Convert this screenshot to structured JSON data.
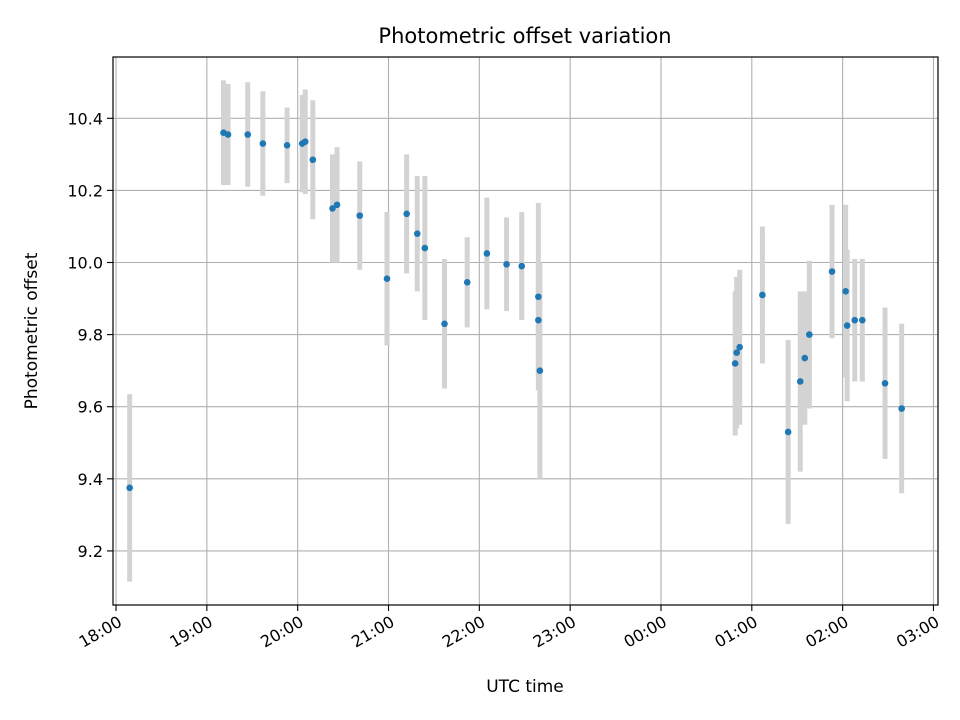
{
  "chart_data": {
    "type": "scatter",
    "title": "Photometric offset variation",
    "xlabel": "UTC time",
    "ylabel": "Photometric offset",
    "grid": true,
    "x_ticks": [
      "18:00",
      "19:00",
      "20:00",
      "21:00",
      "22:00",
      "23:00",
      "00:00",
      "01:00",
      "02:00",
      "03:00"
    ],
    "y_ticks": [
      "9.2",
      "9.4",
      "9.6",
      "9.8",
      "10.0",
      "10.2",
      "10.4"
    ],
    "xlim": [
      "17:58",
      "03:03"
    ],
    "ylim": [
      9.05,
      10.57
    ],
    "colors": {
      "point": "#1f77b4",
      "errorbar": "#d3d3d3",
      "grid": "#b0b0b0"
    },
    "points": [
      {
        "t": "18:09",
        "y": 9.375,
        "err": 0.26
      },
      {
        "t": "19:11",
        "y": 10.36,
        "err": 0.145
      },
      {
        "t": "19:14",
        "y": 10.355,
        "err": 0.14
      },
      {
        "t": "19:27",
        "y": 10.355,
        "err": 0.145
      },
      {
        "t": "19:37",
        "y": 10.33,
        "err": 0.145
      },
      {
        "t": "19:53",
        "y": 10.325,
        "err": 0.105
      },
      {
        "t": "20:03",
        "y": 10.33,
        "err": 0.135
      },
      {
        "t": "20:05",
        "y": 10.335,
        "err": 0.145
      },
      {
        "t": "20:10",
        "y": 10.285,
        "err": 0.165
      },
      {
        "t": "20:23",
        "y": 10.15,
        "err": 0.15
      },
      {
        "t": "20:26",
        "y": 10.16,
        "err": 0.16
      },
      {
        "t": "20:41",
        "y": 10.13,
        "err": 0.15
      },
      {
        "t": "20:59",
        "y": 9.955,
        "err": 0.185
      },
      {
        "t": "21:12",
        "y": 10.135,
        "err": 0.165
      },
      {
        "t": "21:19",
        "y": 10.08,
        "err": 0.16
      },
      {
        "t": "21:24",
        "y": 10.04,
        "err": 0.2
      },
      {
        "t": "21:37",
        "y": 9.83,
        "err": 0.18
      },
      {
        "t": "21:52",
        "y": 9.945,
        "err": 0.125
      },
      {
        "t": "22:05",
        "y": 10.025,
        "err": 0.155
      },
      {
        "t": "22:18",
        "y": 9.995,
        "err": 0.13
      },
      {
        "t": "22:28",
        "y": 9.99,
        "err": 0.15
      },
      {
        "t": "22:39",
        "y": 9.905,
        "err": 0.26
      },
      {
        "t": "22:39",
        "y": 9.84,
        "err": 0.16
      },
      {
        "t": "22:40",
        "y": 9.7,
        "err": 0.3
      },
      {
        "t": "00:49",
        "y": 9.72,
        "err": 0.2
      },
      {
        "t": "00:50",
        "y": 9.75,
        "err": 0.21
      },
      {
        "t": "00:52",
        "y": 9.765,
        "err": 0.215
      },
      {
        "t": "01:07",
        "y": 9.91,
        "err": 0.19
      },
      {
        "t": "01:24",
        "y": 9.53,
        "err": 0.255
      },
      {
        "t": "01:32",
        "y": 9.67,
        "err": 0.25
      },
      {
        "t": "01:35",
        "y": 9.735,
        "err": 0.185
      },
      {
        "t": "01:38",
        "y": 9.8,
        "err": 0.205
      },
      {
        "t": "01:53",
        "y": 9.975,
        "err": 0.185
      },
      {
        "t": "02:02",
        "y": 9.92,
        "err": 0.24
      },
      {
        "t": "02:03",
        "y": 9.825,
        "err": 0.21
      },
      {
        "t": "02:08",
        "y": 9.84,
        "err": 0.17
      },
      {
        "t": "02:13",
        "y": 9.84,
        "err": 0.17
      },
      {
        "t": "02:28",
        "y": 9.665,
        "err": 0.21
      },
      {
        "t": "02:39",
        "y": 9.595,
        "err": 0.235
      }
    ]
  }
}
